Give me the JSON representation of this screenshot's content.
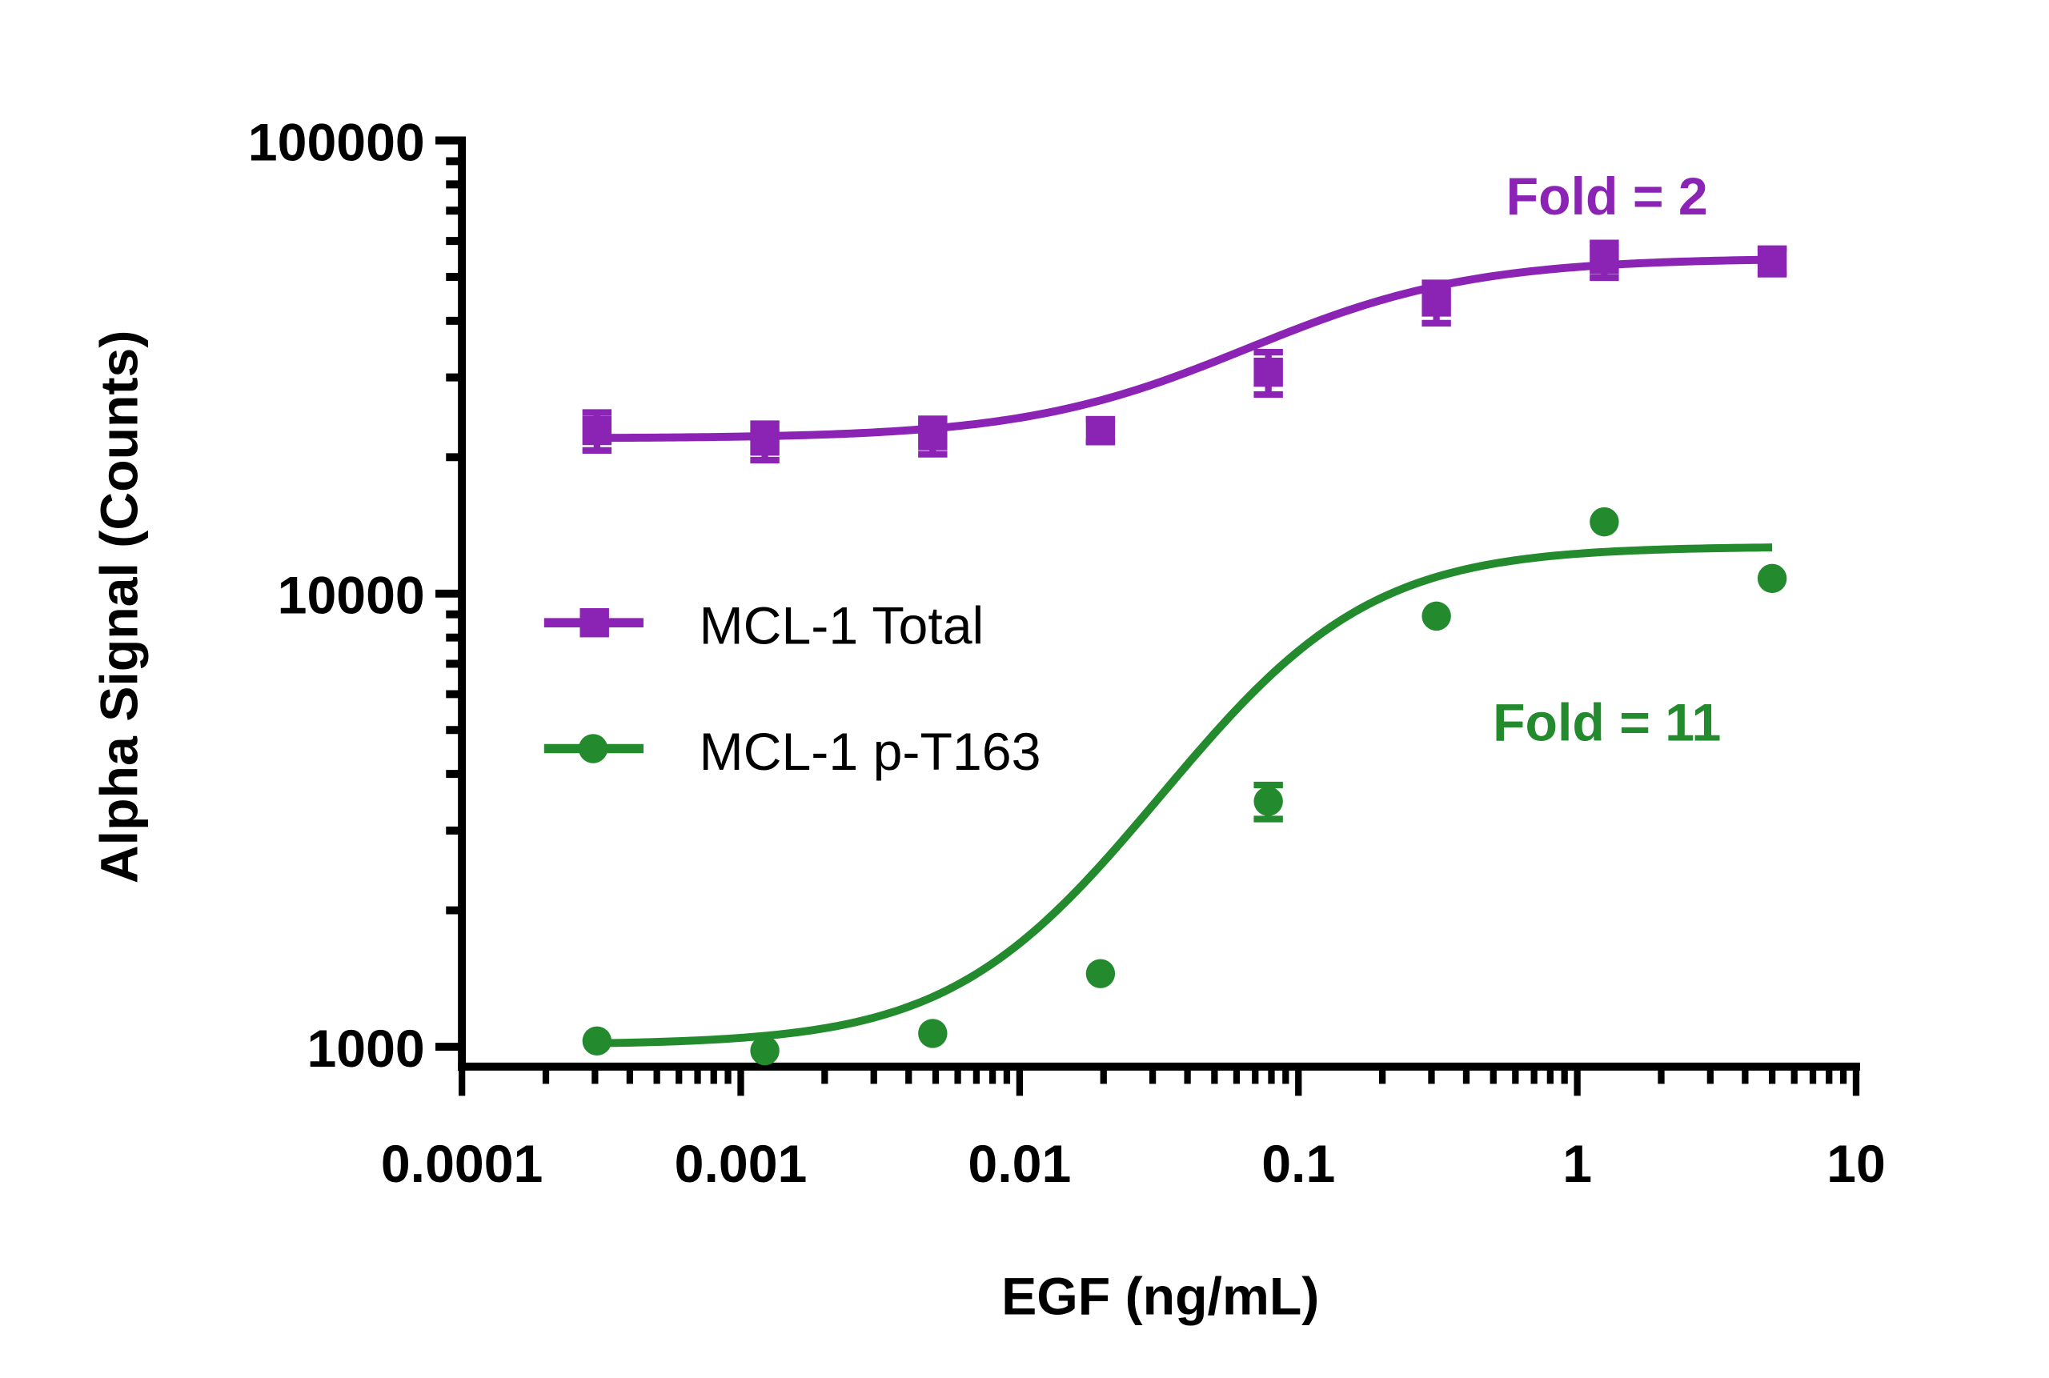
{
  "chart_data": {
    "type": "scatter",
    "title": "",
    "xlabel": "EGF (ng/mL)",
    "ylabel": "Alpha Signal (Counts)",
    "xscale": "log",
    "yscale": "log",
    "xlim": [
      0.0001,
      10
    ],
    "ylim": [
      1000,
      100000
    ],
    "xticks": [
      "0.0001",
      "0.001",
      "0.01",
      "0.1",
      "1",
      "10"
    ],
    "yticks": [
      "1000",
      "10000",
      "100000"
    ],
    "grid": false,
    "legend_position": "center-left",
    "x": [
      0.000305,
      0.00122,
      0.00488,
      0.0195,
      0.078,
      0.3125,
      1.25,
      5
    ],
    "series": [
      {
        "name": "MCL-1 Total",
        "marker": "square",
        "color": "#8B24B5",
        "values": [
          22900,
          21700,
          22300,
          22900,
          30800,
          44000,
          54600,
          54200
        ],
        "errors": [
          2200,
          2000,
          2000,
          1300,
          3300,
          4500,
          4800,
          3500
        ],
        "fit": {
          "bottom": 22000,
          "top": 55000,
          "ec50": 0.1,
          "hill": 1.1
        }
      },
      {
        "name": "MCL-1 p-T163",
        "marker": "circle",
        "color": "#238A2D",
        "values": [
          1030,
          980,
          1070,
          1450,
          3480,
          8920,
          14400,
          10800
        ],
        "errors": [
          0,
          0,
          0,
          0,
          300,
          0,
          0,
          0
        ],
        "fit": {
          "bottom": 1010,
          "top": 12700,
          "ec50": 0.085,
          "hill": 1.3
        }
      }
    ],
    "annotations": [
      {
        "text": "Fold = 2",
        "color": "#8B24B5"
      },
      {
        "text": "Fold = 11",
        "color": "#238A2D"
      }
    ]
  }
}
